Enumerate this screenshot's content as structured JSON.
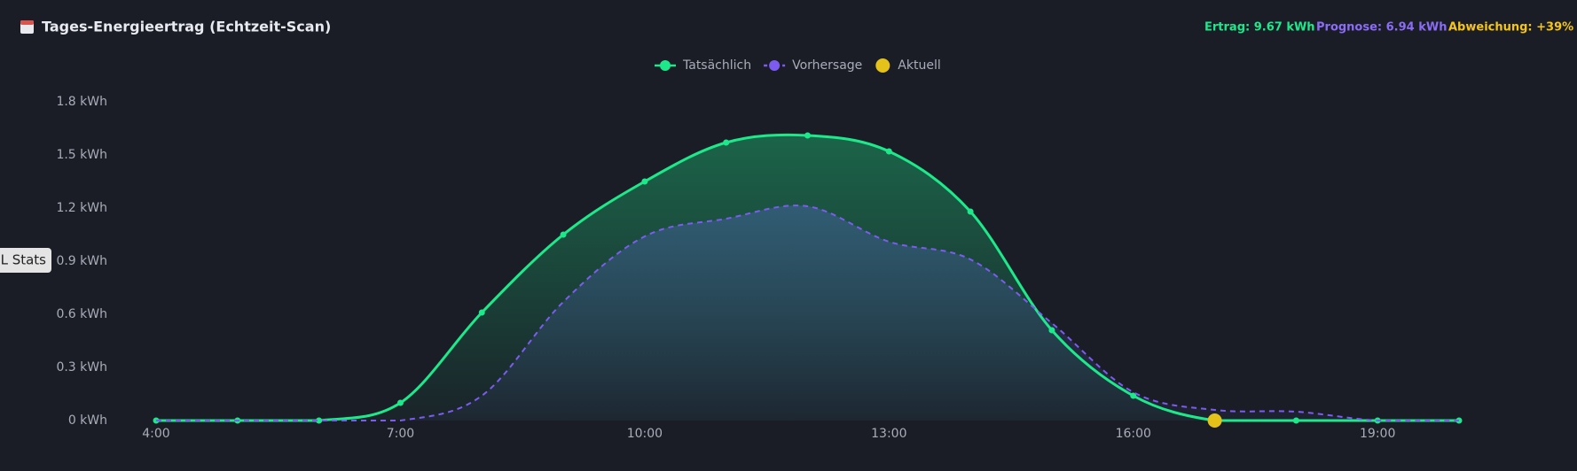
{
  "header": {
    "title": "Tages-Energieertrag (Echtzeit-Scan)",
    "stats": [
      "Ertrag: 9.67 kWh",
      "Prognose: 6.94 kWh",
      "Abweichung: +39%"
    ],
    "side_tab": "ML Stats"
  },
  "chart_data": {
    "type": "line",
    "categories": [
      "4:00",
      null,
      null,
      "7:00",
      null,
      null,
      "10:00",
      null,
      null,
      "13:00",
      null,
      null,
      "16:00",
      null,
      null,
      "19:00",
      null
    ],
    "series": [
      {
        "name": "Tatsächlich",
        "color": "#1de98b",
        "values": [
          0,
          0,
          0,
          0.1,
          0.61,
          1.05,
          1.35,
          1.57,
          1.61,
          1.52,
          1.18,
          0.51,
          0.14,
          0,
          0,
          0,
          0
        ]
      },
      {
        "name": "Vorhersage",
        "color": "#7c5cf0",
        "dashed": true,
        "values": [
          0,
          0,
          0,
          0,
          0.14,
          0.67,
          1.04,
          1.14,
          1.21,
          1.01,
          0.91,
          0.55,
          0.16,
          0.06,
          0.05,
          0,
          0
        ]
      },
      {
        "name": "Aktuell",
        "color": "#e5c21a",
        "marker_only": true,
        "values": [
          null,
          null,
          null,
          null,
          null,
          null,
          null,
          null,
          null,
          null,
          null,
          null,
          null,
          0,
          null,
          null,
          null
        ]
      }
    ],
    "ylim": [
      0,
      1.8
    ],
    "yticks": [
      {
        "value": 0,
        "label": "0 kWh"
      },
      {
        "value": 0.3,
        "label": "0.3 kWh"
      },
      {
        "value": 0.6,
        "label": "0.6 kWh"
      },
      {
        "value": 0.9,
        "label": "0.9 kWh"
      },
      {
        "value": 1.2,
        "label": "1.2 kWh"
      },
      {
        "value": 1.5,
        "label": "1.5 kWh"
      },
      {
        "value": 1.8,
        "label": "1.8 kWh"
      }
    ],
    "grid": false,
    "legend": "top"
  }
}
